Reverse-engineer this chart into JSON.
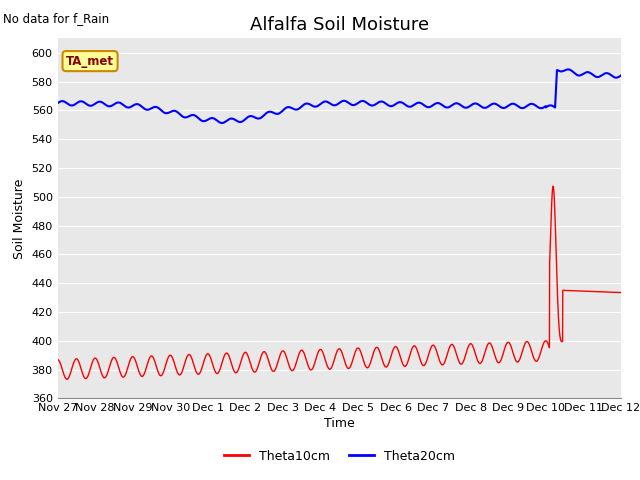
{
  "title": "Alfalfa Soil Moisture",
  "no_data_text": "No data for f_Rain",
  "ylabel": "Soil Moisture",
  "xlabel": "Time",
  "ylim": [
    360,
    610
  ],
  "yticks": [
    360,
    380,
    400,
    420,
    440,
    460,
    480,
    500,
    520,
    540,
    560,
    580,
    600
  ],
  "xtick_labels": [
    "Nov 27",
    "Nov 28",
    "Nov 29",
    "Nov 30",
    "Dec 1",
    "Dec 2",
    "Dec 3",
    "Dec 4",
    "Dec 5",
    "Dec 6",
    "Dec 7",
    "Dec 8",
    "Dec 9",
    "Dec 10",
    "Dec 11",
    "Dec 12"
  ],
  "legend_label1": "Theta10cm",
  "legend_label2": "Theta20cm",
  "legend_box_label": "TA_met",
  "line1_color": "#ff0000",
  "line2_color": "#0000ff",
  "bg_color": "#e8e8e8",
  "fig_bg_color": "#ffffff",
  "grid_color": "#ffffff",
  "title_fontsize": 13,
  "axis_fontsize": 9,
  "tick_fontsize": 8
}
